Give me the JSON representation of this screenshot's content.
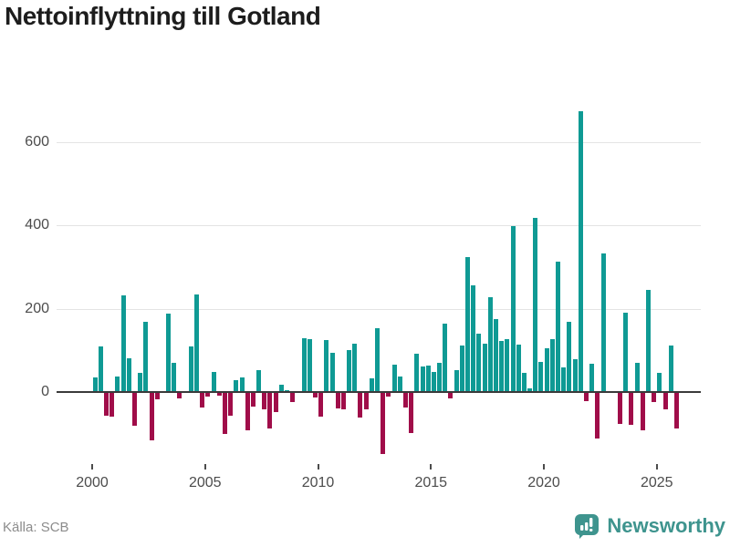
{
  "title_block": {
    "title": "Nettoinflyttning till Gotland"
  },
  "source": {
    "label": "Källa: SCB"
  },
  "branding": {
    "name": "Newsworthy",
    "logo_icon": "speech-bubble-bar-chart"
  },
  "colors": {
    "positive_bar": "#0f9a94",
    "negative_bar": "#a00d49",
    "brand_teal": "#3e948e",
    "zero_axis": "#3a3a3a",
    "gridline": "#e4e4e4",
    "tick_text": "#4c4c4c",
    "source_text": "#8c8c8c",
    "title_text": "#1d1d1d"
  },
  "chart_data": {
    "type": "bar",
    "title": "Nettoinflyttning till Gotland",
    "xlabel": "",
    "ylabel": "",
    "frequency": "quarterly",
    "start_year": 2000,
    "end_year": 2025,
    "x_tick_labels": [
      "2000",
      "2005",
      "2010",
      "2015",
      "2020",
      "2025"
    ],
    "y_ticks": [
      0,
      200,
      400,
      600
    ],
    "ylim": [
      -160,
      700
    ],
    "grid": true,
    "legend": "none",
    "series": [
      {
        "name": "Nettoinflyttning",
        "values_by_year": {
          "2000": [
            35,
            110,
            -57,
            -60
          ],
          "2001": [
            37,
            232,
            81,
            -81
          ],
          "2002": [
            46,
            169,
            -117,
            -18
          ],
          "2003": [
            3,
            189,
            70,
            -15
          ],
          "2004": [
            -2,
            110,
            234,
            -38
          ],
          "2005": [
            -10,
            48,
            -8,
            -100
          ],
          "2006": [
            -56,
            28,
            35,
            -91
          ],
          "2007": [
            -36,
            53,
            -41,
            -88
          ],
          "2008": [
            -48,
            18,
            4,
            -25
          ],
          "2009": [
            -3,
            129,
            127,
            -13
          ],
          "2010": [
            -59,
            124,
            94,
            -40
          ],
          "2011": [
            -42,
            101,
            116,
            -62
          ],
          "2012": [
            -42,
            33,
            154,
            -149
          ],
          "2013": [
            -10,
            66,
            38,
            -38
          ],
          "2014": [
            -99,
            92,
            61,
            64
          ],
          "2015": [
            48,
            71,
            165,
            -15
          ],
          "2016": [
            52,
            111,
            324,
            256
          ],
          "2017": [
            140,
            116,
            228,
            176
          ],
          "2018": [
            123,
            127,
            398,
            114
          ],
          "2019": [
            47,
            8,
            418,
            73
          ],
          "2020": [
            106,
            127,
            313,
            60
          ],
          "2021": [
            168,
            80,
            675,
            -21
          ],
          "2022": [
            68,
            -111,
            334,
            -2
          ],
          "2023": [
            -2,
            -77,
            190,
            -79
          ],
          "2024": [
            70,
            -91,
            245,
            -24
          ],
          "2025": [
            47,
            -41,
            111,
            -87
          ]
        }
      }
    ]
  }
}
